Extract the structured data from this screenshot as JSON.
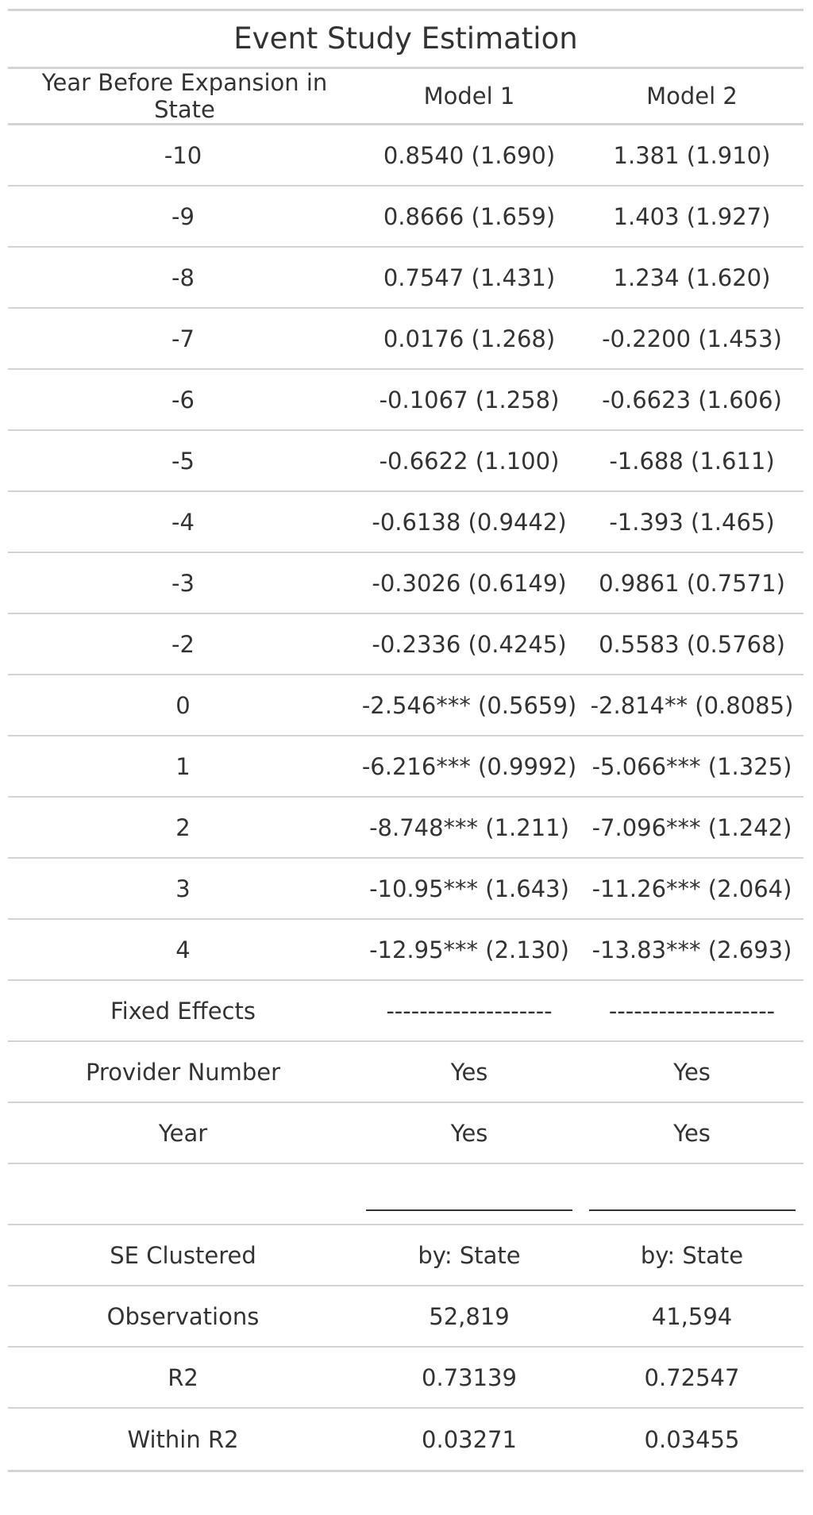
{
  "table": {
    "title": "Event Study Estimation",
    "headers": [
      "Year Before Expansion in State",
      "Model 1",
      "Model 2"
    ],
    "rows": [
      [
        "-10",
        "0.8540 (1.690)",
        "1.381 (1.910)"
      ],
      [
        "-9",
        "0.8666 (1.659)",
        "1.403 (1.927)"
      ],
      [
        "-8",
        "0.7547 (1.431)",
        "1.234 (1.620)"
      ],
      [
        "-7",
        "0.0176 (1.268)",
        "-0.2200 (1.453)"
      ],
      [
        "-6",
        "-0.1067 (1.258)",
        "-0.6623 (1.606)"
      ],
      [
        "-5",
        "-0.6622 (1.100)",
        "-1.688 (1.611)"
      ],
      [
        "-4",
        "-0.6138 (0.9442)",
        "-1.393 (1.465)"
      ],
      [
        "-3",
        "-0.3026 (0.6149)",
        "0.9861 (0.7571)"
      ],
      [
        "-2",
        "-0.2336 (0.4245)",
        "0.5583 (0.5768)"
      ],
      [
        "0",
        "-2.546*** (0.5659)",
        "-2.814** (0.8085)"
      ],
      [
        "1",
        "-6.216*** (0.9992)",
        "-5.066*** (1.325)"
      ],
      [
        "2",
        "-8.748*** (1.211)",
        "-7.096*** (1.242)"
      ],
      [
        "3",
        "-10.95*** (1.643)",
        "-11.26*** (2.064)"
      ],
      [
        "4",
        "-12.95*** (2.130)",
        "-13.83*** (2.693)"
      ],
      [
        "Fixed Effects",
        "--------------------",
        "--------------------"
      ],
      [
        "Provider Number",
        "Yes",
        "Yes"
      ],
      [
        "Year",
        "Yes",
        "Yes"
      ]
    ],
    "stats_rows": [
      [
        "SE Clustered",
        "by: State",
        "by: State"
      ],
      [
        "Observations",
        "52,819",
        "41,594"
      ],
      [
        "R2",
        "0.73139",
        "0.72547"
      ],
      [
        "Within R2",
        "0.03271",
        "0.03455"
      ]
    ]
  },
  "colors": {
    "rule": "#d3d3d3",
    "text": "#333333"
  }
}
